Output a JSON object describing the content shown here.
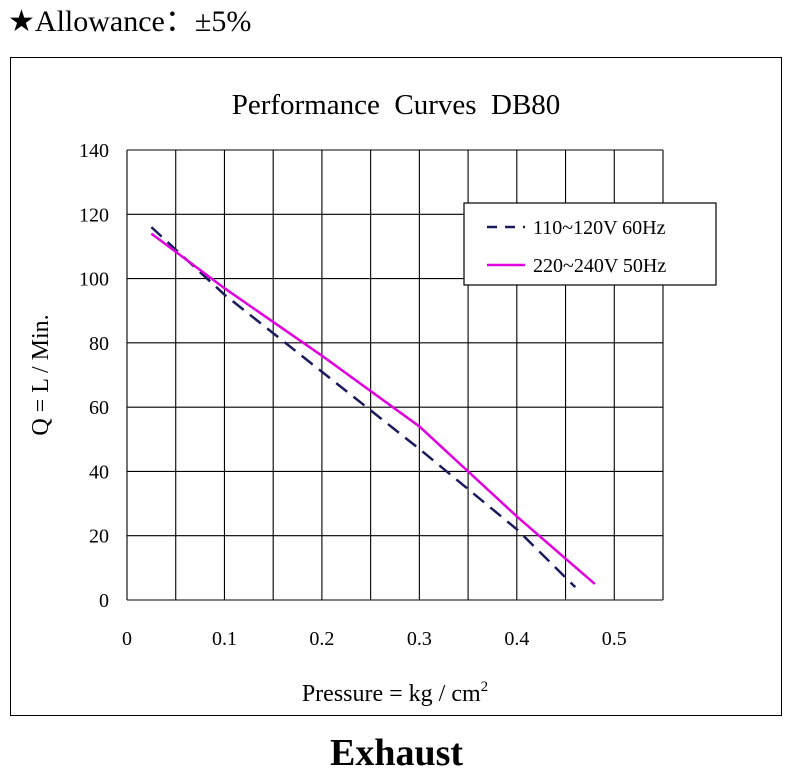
{
  "header": {
    "star": "★",
    "allowance": "Allowance：±5%"
  },
  "footer": {
    "caption": "Exhaust"
  },
  "chart_data": {
    "type": "line",
    "title": "Performance  Curves  DB80",
    "xlabel": "Pressure = kg / cm",
    "xlabel_sup": "2",
    "ylabel": "Q = L / Min.",
    "xlim": [
      0,
      0.55
    ],
    "ylim": [
      0,
      140
    ],
    "x_ticks": [
      0,
      0.1,
      0.2,
      0.3,
      0.4,
      0.5
    ],
    "x_tick_labels": [
      "0",
      "0.1",
      "0.2",
      "0.3",
      "0.4",
      "0.5"
    ],
    "y_ticks": [
      0,
      20,
      40,
      60,
      80,
      100,
      120,
      140
    ],
    "y_tick_labels": [
      "0",
      "20",
      "40",
      "60",
      "80",
      "100",
      "120",
      "140"
    ],
    "grid": true,
    "legend_position": "top-right",
    "series": [
      {
        "name": "110~120V 60Hz",
        "color": "#1a1a5e",
        "dash": true,
        "points": [
          [
            0.025,
            116
          ],
          [
            0.1,
            95
          ],
          [
            0.2,
            71
          ],
          [
            0.3,
            47
          ],
          [
            0.4,
            22
          ],
          [
            0.46,
            4
          ]
        ]
      },
      {
        "name": "220~240V 50Hz",
        "color": "#e000e0",
        "dash": false,
        "points": [
          [
            0.025,
            114
          ],
          [
            0.1,
            97
          ],
          [
            0.2,
            76
          ],
          [
            0.25,
            65
          ],
          [
            0.3,
            54
          ],
          [
            0.35,
            40
          ],
          [
            0.4,
            26
          ],
          [
            0.48,
            5
          ]
        ]
      }
    ]
  }
}
